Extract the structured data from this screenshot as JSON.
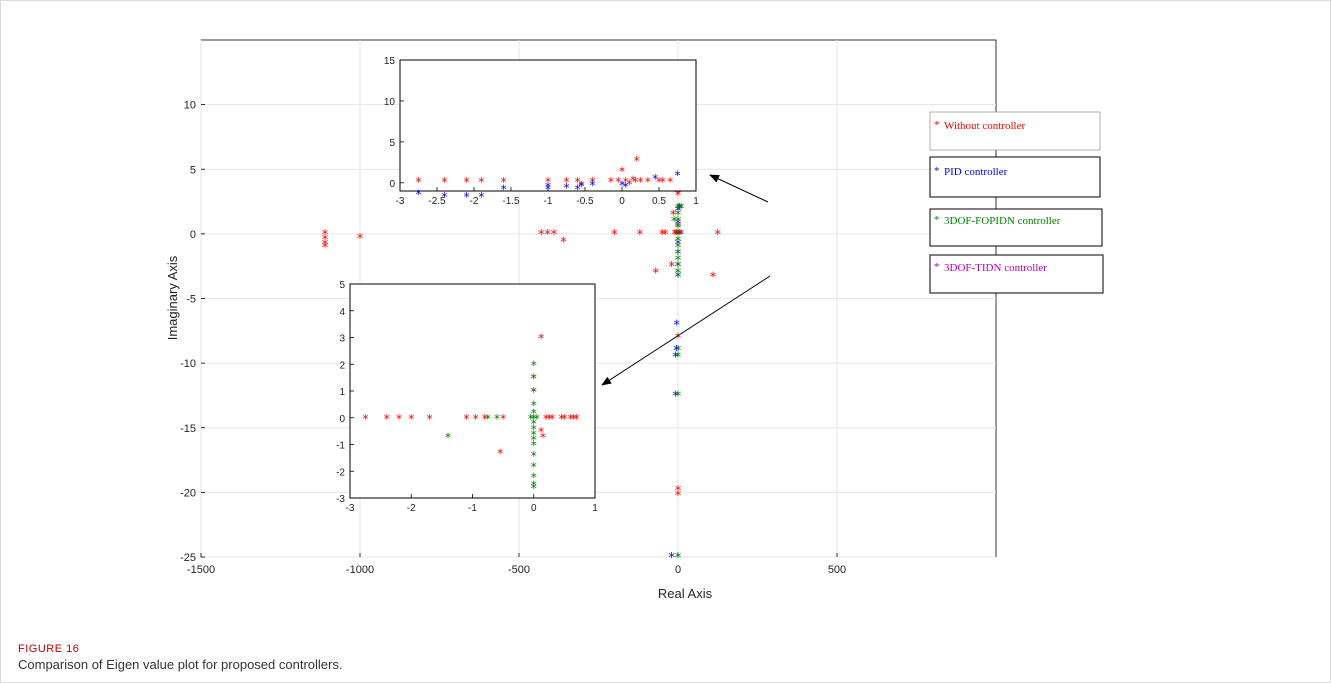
{
  "figure": {
    "label": "FIGURE 16",
    "caption": "Comparison of Eigen value plot for proposed controllers."
  },
  "colors": {
    "without": "#ff0000",
    "pid": "#0000ff",
    "fopidn": "#008000",
    "tidn": "#b000b0"
  },
  "chart_data": [
    {
      "type": "scatter",
      "marker": "asterisk",
      "xlabel": "Real Axis",
      "ylabel": "Imaginary Axis",
      "xlim": [
        -1500,
        1000
      ],
      "ylim": [
        -25,
        15
      ],
      "xticks": [
        -1500,
        -1000,
        -500,
        0,
        500
      ],
      "yticks": [
        -25,
        -20,
        -15,
        -10,
        -5,
        0,
        5,
        10
      ],
      "grid": true,
      "legend": {
        "placement": "right",
        "entries": [
          "Without controller",
          "PID controller",
          "3DOF-FOPIDN controller",
          "3DOF-TIDN controller"
        ]
      },
      "series": [
        {
          "name": "Without controller",
          "points": [
            [
              -1110,
              0
            ],
            [
              -1110,
              -0.4
            ],
            [
              -1110,
              -0.8
            ],
            [
              -1110,
              -1
            ],
            [
              -1000,
              -0.3
            ],
            [
              -430,
              0
            ],
            [
              -410,
              0
            ],
            [
              -390,
              0
            ],
            [
              -360,
              -0.6
            ],
            [
              -200,
              0
            ],
            [
              -120,
              0
            ],
            [
              -70,
              -3
            ],
            [
              -50,
              0
            ],
            [
              -40,
              0
            ],
            [
              -20,
              -2.5
            ],
            [
              -15,
              1.5
            ],
            [
              -10,
              0
            ],
            [
              -5,
              0
            ],
            [
              -2,
              3.2
            ],
            [
              0,
              12.8
            ],
            [
              0,
              3
            ],
            [
              0,
              0.6
            ],
            [
              0,
              -8
            ],
            [
              0,
              -19.8
            ],
            [
              0,
              -20.2
            ],
            [
              5,
              0
            ],
            [
              10,
              0
            ],
            [
              110,
              -3.3
            ],
            [
              125,
              0
            ]
          ]
        },
        {
          "name": "PID controller",
          "points": [
            [
              -20,
              -25
            ],
            [
              -8,
              -12.5
            ],
            [
              -8,
              -9.5
            ],
            [
              -5,
              -9
            ],
            [
              -4,
              -7
            ],
            [
              0,
              -3.3
            ],
            [
              0,
              -2.5
            ],
            [
              0,
              -1.5
            ],
            [
              0,
              -0.8
            ],
            [
              0,
              0
            ],
            [
              0,
              0.8
            ],
            [
              0,
              1.8
            ],
            [
              5,
              2
            ],
            [
              5,
              8.8
            ],
            [
              8,
              10.5
            ],
            [
              12,
              10.5
            ]
          ]
        },
        {
          "name": "3DOF-FOPIDN controller",
          "points": [
            [
              -12,
              1
            ],
            [
              0,
              2
            ],
            [
              0,
              1.5
            ],
            [
              0,
              1
            ],
            [
              0,
              0.5
            ],
            [
              0,
              0
            ],
            [
              0,
              -0.5
            ],
            [
              0,
              -1
            ],
            [
              0,
              -1.5
            ],
            [
              0,
              -2
            ],
            [
              0,
              -2.5
            ],
            [
              0,
              -3
            ],
            [
              0,
              -3.3
            ],
            [
              0,
              -9
            ],
            [
              0,
              -9.5
            ],
            [
              0,
              -12.5
            ],
            [
              0,
              -25
            ],
            [
              0,
              8.8
            ],
            [
              0,
              10.5
            ],
            [
              10,
              2
            ]
          ]
        },
        {
          "name": "3DOF-TIDN controller",
          "points": []
        }
      ]
    },
    {
      "type": "scatter",
      "marker": "asterisk",
      "xlim": [
        -3,
        1
      ],
      "ylim": [
        -1,
        15
      ],
      "xticks": [
        -3,
        -2.5,
        -2,
        -1.5,
        -1,
        -0.5,
        0,
        0.5,
        1
      ],
      "yticks": [
        0,
        5,
        10,
        15
      ],
      "series": [
        {
          "name": "Without controller",
          "points": [
            [
              -2.75,
              0.2
            ],
            [
              -2.4,
              0.2
            ],
            [
              -2.1,
              0.2
            ],
            [
              -1.9,
              0.2
            ],
            [
              -1.6,
              0.2
            ],
            [
              -1.0,
              0.2
            ],
            [
              -0.75,
              0.2
            ],
            [
              -0.6,
              0.2
            ],
            [
              -0.55,
              -0.2
            ],
            [
              -0.4,
              0.2
            ],
            [
              -0.15,
              0.2
            ],
            [
              -0.05,
              0.2
            ],
            [
              0,
              1.5
            ],
            [
              0.05,
              0.2
            ],
            [
              0.1,
              -0.1
            ],
            [
              0.15,
              0.4
            ],
            [
              0.18,
              0.2
            ],
            [
              0.2,
              2.8
            ],
            [
              0.25,
              0.2
            ],
            [
              0.35,
              0.2
            ],
            [
              0.5,
              0.2
            ],
            [
              0.55,
              0.2
            ],
            [
              0.65,
              0.2
            ]
          ]
        },
        {
          "name": "PID controller",
          "points": [
            [
              -2.75,
              -1.3
            ],
            [
              -2.4,
              -1.6
            ],
            [
              -2.1,
              -1.6
            ],
            [
              -1.9,
              -1.6
            ],
            [
              -1.6,
              -0.7
            ],
            [
              -1.0,
              -0.7
            ],
            [
              -1.0,
              -0.4
            ],
            [
              -0.75,
              -0.5
            ],
            [
              -0.6,
              -0.7
            ],
            [
              -0.55,
              -0.3
            ],
            [
              -0.4,
              -0.2
            ],
            [
              0.0,
              -0.2
            ],
            [
              0.05,
              -0.4
            ],
            [
              0.45,
              0.6
            ],
            [
              0.75,
              1.0
            ]
          ]
        }
      ]
    },
    {
      "type": "scatter",
      "marker": "asterisk",
      "xlim": [
        -3,
        1
      ],
      "ylim": [
        -3,
        5
      ],
      "xticks": [
        -3,
        -2,
        -1,
        0,
        1
      ],
      "yticks": [
        -3,
        -2,
        -1,
        0,
        1,
        2,
        3,
        4,
        5
      ],
      "series": [
        {
          "name": "Without controller",
          "points": [
            [
              -2.75,
              0
            ],
            [
              -2.4,
              0
            ],
            [
              -2.2,
              0
            ],
            [
              -2.0,
              0
            ],
            [
              -1.7,
              0
            ],
            [
              -1.1,
              0
            ],
            [
              -0.95,
              0
            ],
            [
              -0.8,
              0
            ],
            [
              -0.55,
              -1.3
            ],
            [
              -0.5,
              0
            ],
            [
              0,
              1.5
            ],
            [
              0,
              1
            ],
            [
              0.12,
              3
            ],
            [
              0.12,
              -0.5
            ],
            [
              0.15,
              -0.7
            ],
            [
              0.2,
              0
            ],
            [
              0.25,
              0
            ],
            [
              0.3,
              0
            ],
            [
              0.45,
              0
            ],
            [
              0.5,
              0
            ],
            [
              0.6,
              0
            ],
            [
              0.65,
              0
            ],
            [
              0.7,
              0
            ]
          ]
        },
        {
          "name": "3DOF-FOPIDN controller",
          "points": [
            [
              -1.4,
              -0.7
            ],
            [
              -0.75,
              0
            ],
            [
              -0.6,
              0
            ],
            [
              -0.05,
              0
            ],
            [
              0,
              2
            ],
            [
              0,
              1.5
            ],
            [
              0,
              1
            ],
            [
              0,
              0.5
            ],
            [
              0,
              0.2
            ],
            [
              0,
              0
            ],
            [
              0,
              -0.2
            ],
            [
              0,
              -0.4
            ],
            [
              0,
              -0.6
            ],
            [
              0,
              -0.8
            ],
            [
              0,
              -1
            ],
            [
              0,
              -1.4
            ],
            [
              0,
              -1.8
            ],
            [
              0,
              -2.2
            ],
            [
              0,
              -2.5
            ],
            [
              0,
              -2.6
            ],
            [
              0.05,
              0
            ]
          ]
        }
      ]
    }
  ]
}
